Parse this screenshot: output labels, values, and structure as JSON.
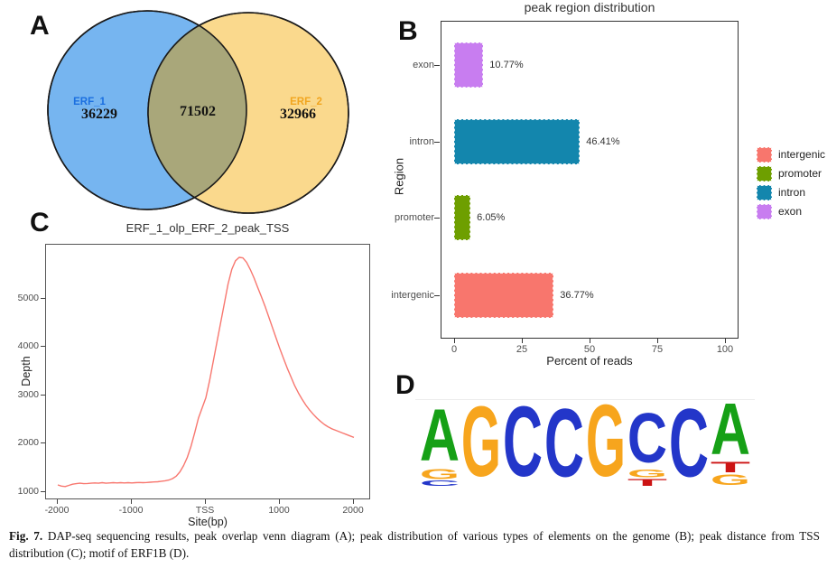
{
  "panel_labels": {
    "a": "A",
    "b": "B",
    "c": "C",
    "d": "D"
  },
  "chart_data": [
    {
      "type": "venn",
      "sets": [
        {
          "label": "ERF_1",
          "count": 36229,
          "fill": "#76B5F0",
          "label_color": "#1B6FE0"
        },
        {
          "label": "ERF_2",
          "count": 32966,
          "fill": "#FAD98D",
          "label_color": "#F1A51F"
        }
      ],
      "overlap": 71502,
      "overlap_fill": "#A9A77A",
      "stroke": "#1a1a1a"
    },
    {
      "type": "bar",
      "orientation": "horizontal",
      "title": "peak region distribution",
      "xlabel": "Percent of reads",
      "ylabel": "Region",
      "categories": [
        "exon",
        "intron",
        "promoter",
        "intergenic"
      ],
      "values": [
        10.77,
        46.41,
        6.05,
        36.77
      ],
      "value_labels": [
        "10.77%",
        "46.41%",
        "6.05%",
        "36.77%"
      ],
      "colors": [
        "#C87DF0",
        "#1386AD",
        "#6E9F00",
        "#F8766D"
      ],
      "xlim": [
        0,
        100
      ],
      "x_ticks": [
        0,
        25,
        50,
        75,
        100
      ],
      "legend_position": "right",
      "legend": [
        {
          "label": "intergenic",
          "color": "#F8766D"
        },
        {
          "label": "promoter",
          "color": "#6E9F00"
        },
        {
          "label": "intron",
          "color": "#1386AD"
        },
        {
          "label": "exon",
          "color": "#C87DF0"
        }
      ]
    },
    {
      "type": "line",
      "title": "ERF_1_olp_ERF_2_peak_TSS",
      "xlabel": "Site(bp)",
      "ylabel": "Depth",
      "line_color": "#F8776F",
      "x_ticks": [
        {
          "value": -2000,
          "label": "-2000"
        },
        {
          "value": -1000,
          "label": "-1000"
        },
        {
          "value": 0,
          "label": "TSS"
        },
        {
          "value": 1000,
          "label": "1000"
        },
        {
          "value": 2000,
          "label": "2000"
        }
      ],
      "y_ticks": [
        1000,
        2000,
        3000,
        4000,
        5000
      ],
      "ylim": [
        1000,
        5900
      ],
      "points": [
        [
          -2000,
          1150
        ],
        [
          -1950,
          1125
        ],
        [
          -1900,
          1115
        ],
        [
          -1850,
          1140
        ],
        [
          -1800,
          1165
        ],
        [
          -1750,
          1175
        ],
        [
          -1700,
          1185
        ],
        [
          -1650,
          1175
        ],
        [
          -1600,
          1180
        ],
        [
          -1550,
          1185
        ],
        [
          -1500,
          1190
        ],
        [
          -1450,
          1185
        ],
        [
          -1400,
          1195
        ],
        [
          -1350,
          1185
        ],
        [
          -1300,
          1190
        ],
        [
          -1250,
          1195
        ],
        [
          -1200,
          1190
        ],
        [
          -1150,
          1195
        ],
        [
          -1100,
          1190
        ],
        [
          -1050,
          1195
        ],
        [
          -1000,
          1190
        ],
        [
          -950,
          1195
        ],
        [
          -900,
          1200
        ],
        [
          -850,
          1195
        ],
        [
          -800,
          1200
        ],
        [
          -750,
          1205
        ],
        [
          -700,
          1210
        ],
        [
          -650,
          1215
        ],
        [
          -600,
          1225
        ],
        [
          -550,
          1235
        ],
        [
          -500,
          1250
        ],
        [
          -450,
          1280
        ],
        [
          -400,
          1330
        ],
        [
          -350,
          1420
        ],
        [
          -300,
          1550
        ],
        [
          -250,
          1720
        ],
        [
          -200,
          1950
        ],
        [
          -150,
          2230
        ],
        [
          -100,
          2530
        ],
        [
          -50,
          2740
        ],
        [
          0,
          2950
        ],
        [
          50,
          3300
        ],
        [
          100,
          3700
        ],
        [
          150,
          4100
        ],
        [
          200,
          4500
        ],
        [
          250,
          4900
        ],
        [
          300,
          5300
        ],
        [
          350,
          5600
        ],
        [
          400,
          5780
        ],
        [
          450,
          5850
        ],
        [
          500,
          5840
        ],
        [
          550,
          5750
        ],
        [
          600,
          5600
        ],
        [
          650,
          5430
        ],
        [
          700,
          5230
        ],
        [
          750,
          5040
        ],
        [
          800,
          4840
        ],
        [
          850,
          4620
        ],
        [
          900,
          4400
        ],
        [
          950,
          4180
        ],
        [
          1000,
          3960
        ],
        [
          1050,
          3760
        ],
        [
          1100,
          3560
        ],
        [
          1150,
          3380
        ],
        [
          1200,
          3200
        ],
        [
          1250,
          3050
        ],
        [
          1300,
          2920
        ],
        [
          1350,
          2800
        ],
        [
          1400,
          2700
        ],
        [
          1450,
          2610
        ],
        [
          1500,
          2530
        ],
        [
          1550,
          2460
        ],
        [
          1600,
          2400
        ],
        [
          1650,
          2350
        ],
        [
          1700,
          2310
        ],
        [
          1750,
          2280
        ],
        [
          1800,
          2250
        ],
        [
          1850,
          2220
        ],
        [
          1900,
          2190
        ],
        [
          1950,
          2160
        ],
        [
          2000,
          2130
        ]
      ]
    },
    {
      "type": "logo",
      "consensus": "AGCCGCCA",
      "base_colors": {
        "A": "#16A016",
        "C": "#2336C9",
        "G": "#F7A51D",
        "T": "#CC1414"
      },
      "columns": [
        [
          [
            "A",
            68
          ],
          [
            "G",
            13
          ],
          [
            "C",
            7
          ]
        ],
        [
          [
            "G",
            92
          ]
        ],
        [
          [
            "C",
            92
          ]
        ],
        [
          [
            "C",
            90
          ]
        ],
        [
          [
            "G",
            94
          ]
        ],
        [
          [
            "C",
            65
          ],
          [
            "G",
            10
          ],
          [
            "T",
            9
          ]
        ],
        [
          [
            "C",
            90
          ]
        ],
        [
          [
            "A",
            67
          ],
          [
            "T",
            14
          ],
          [
            "G",
            14
          ]
        ]
      ]
    }
  ],
  "caption": {
    "fig_label": "Fig. 7.",
    "text": "DAP-seq sequencing results, peak overlap venn diagram (A); peak distribution of various types of elements on the genome (B); peak distance from TSS distribution (C); motif of ERF1B (D)."
  }
}
